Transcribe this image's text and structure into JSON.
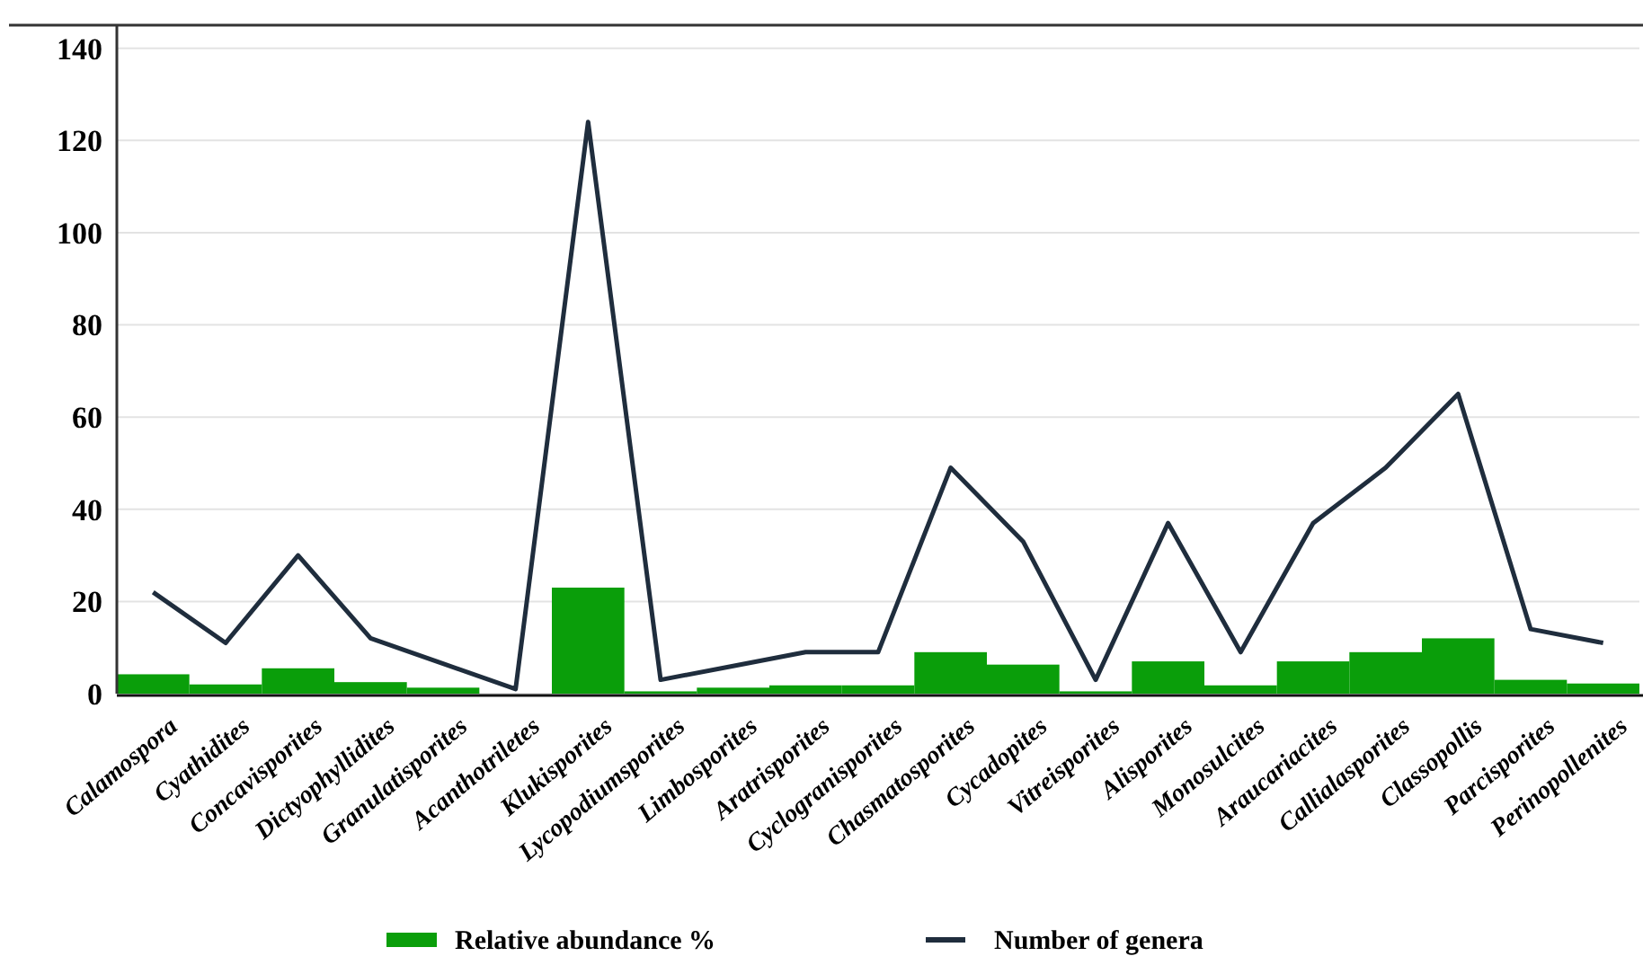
{
  "chart_data": {
    "type": "bar",
    "categories": [
      "Calamospora",
      "Cyathidites",
      "Concavisporites",
      "Dictyophyllidites",
      "Granulatisporites",
      "Acanthotriletes",
      "Klukisporites",
      "Lycopodiumsporites",
      "Limbosporites",
      "Aratrisporites",
      "Cyclogranisporites",
      "Chasmatosporites",
      "Cycadopites",
      "Vitreisporites",
      "Alisporites",
      "Monosulcites",
      "Araucariacites",
      "Callialasporites",
      "Classopollis",
      "Parcisporites",
      "Perinopollenites"
    ],
    "series": [
      {
        "name": "Relative abundance %",
        "color": "#0a9e0a",
        "values": [
          4.2,
          2,
          5.5,
          2.5,
          1.3,
          null,
          23,
          0.5,
          1.3,
          1.8,
          1.8,
          9,
          6.3,
          0.5,
          7,
          1.8,
          7,
          9,
          12,
          3,
          2.2
        ]
      },
      {
        "name": "Number of genera",
        "type": "line",
        "color": "#1f2d3d",
        "values": [
          22,
          11,
          30,
          12,
          6.5,
          1,
          124,
          3,
          6,
          9,
          9,
          49,
          33,
          3,
          37,
          9,
          37,
          49,
          65,
          14,
          11
        ]
      }
    ],
    "ylim": [
      0,
      145
    ],
    "yticks": [
      0,
      20,
      40,
      60,
      80,
      100,
      120,
      140
    ],
    "grid": "y",
    "legend": "bottom",
    "marker": "none",
    "line_style": "solid"
  }
}
